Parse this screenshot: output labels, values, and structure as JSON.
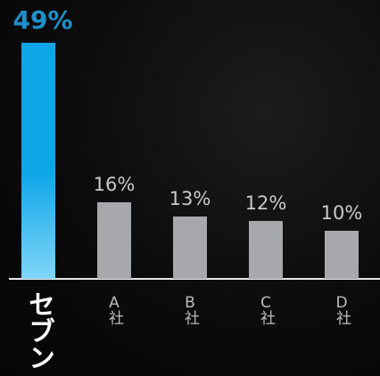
{
  "chart_data": {
    "type": "bar",
    "categories": [
      "セブン",
      "A社",
      "B社",
      "C社",
      "D社"
    ],
    "values": [
      49,
      16,
      13,
      12,
      10
    ],
    "value_labels": [
      "49%",
      "16%",
      "13%",
      "12%",
      "10%"
    ],
    "colors": [
      "#0ea5e9",
      "#a7a8ac",
      "#a7a8ac",
      "#a7a8ac",
      "#a7a8ac"
    ]
  }
}
